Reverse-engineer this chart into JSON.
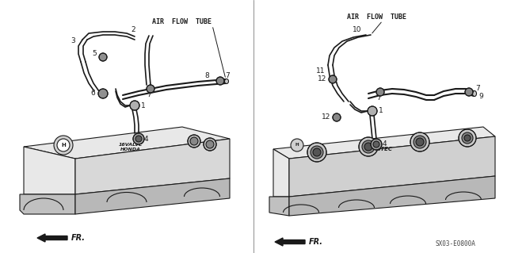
{
  "bg_color": "#ffffff",
  "line_color": "#1a1a1a",
  "gray_fill": "#c8c8c8",
  "light_gray": "#e8e8e8",
  "dark_gray": "#555555",
  "left_label": "AIR  FLOW  TUBE",
  "right_label": "AIR  FLOW  TUBE",
  "footnote": "SX03-E0800A",
  "part_fontsize": 6.5,
  "label_fontsize": 6.0,
  "footnote_fontsize": 5.5
}
